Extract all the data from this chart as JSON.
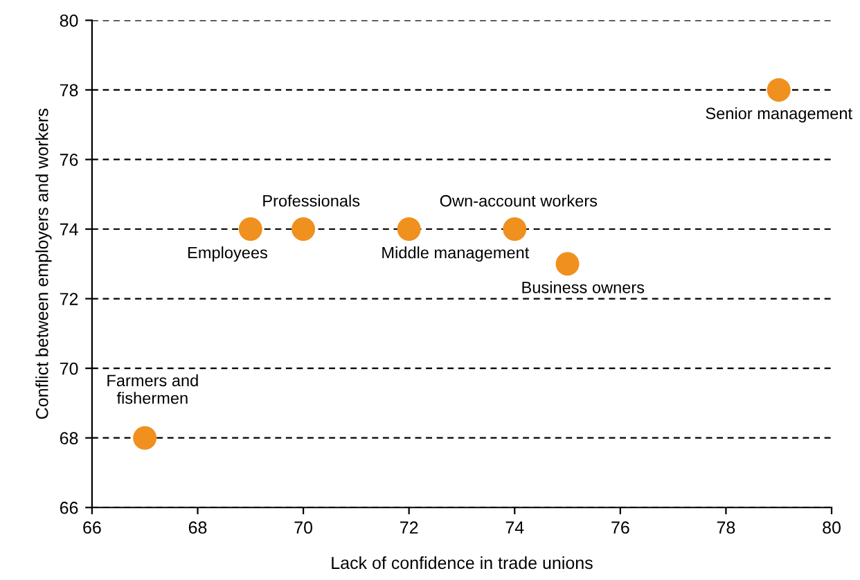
{
  "chart_data": {
    "type": "scatter",
    "xlabel": "Lack of confidence in trade unions",
    "ylabel": "Conflict between employers and workers",
    "x": [
      67,
      69,
      70,
      72,
      74,
      75,
      79
    ],
    "values": [
      68,
      74,
      74,
      74,
      74,
      73,
      78
    ],
    "color": "#f0901e",
    "marker": "circle",
    "annotations": [
      {
        "text": "Farmers and\nfishermen",
        "x": 67,
        "y": 68
      },
      {
        "text": "Employees",
        "x": 69,
        "y": 74
      },
      {
        "text": "Professionals",
        "x": 70,
        "y": 74
      },
      {
        "text": "Middle management",
        "x": 72,
        "y": 74
      },
      {
        "text": "Own-account workers",
        "x": 74,
        "y": 74
      },
      {
        "text": "Business owners",
        "x": 75,
        "y": 73
      },
      {
        "text": "Senior management",
        "x": 79,
        "y": 78
      }
    ],
    "xlim": [
      66,
      80
    ],
    "xticks": [
      66,
      68,
      70,
      72,
      74,
      76,
      78,
      80
    ],
    "ylim": [
      66,
      80
    ],
    "yticks": [
      66,
      68,
      70,
      72,
      74,
      76,
      78,
      80
    ],
    "grid": "y"
  }
}
